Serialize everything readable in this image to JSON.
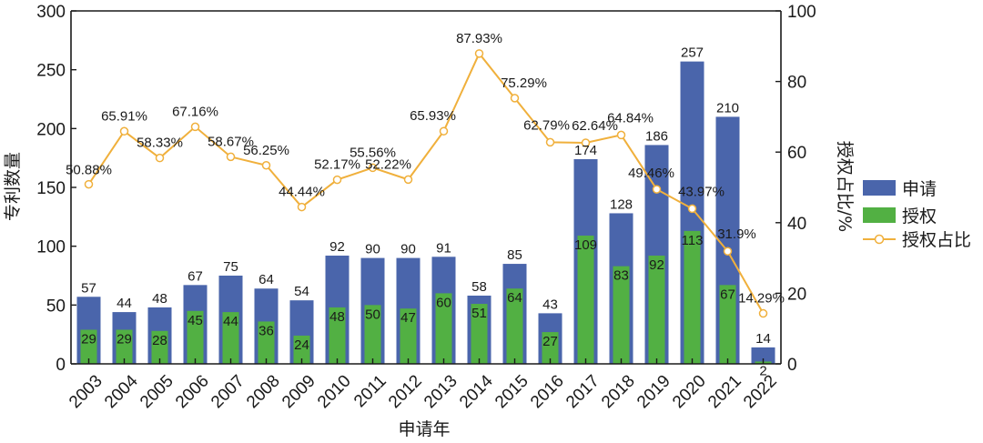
{
  "chart_data": {
    "type": "bar",
    "xlabel": "申请年",
    "ylabel_left": "专利数量",
    "ylabel_right": "授权占比/%",
    "ylim_left": [
      0,
      300
    ],
    "ylim_right": [
      0,
      100
    ],
    "yticks_left": [
      0,
      50,
      100,
      150,
      200,
      250,
      300
    ],
    "yticks_right": [
      0,
      20,
      40,
      60,
      80,
      100
    ],
    "categories": [
      "2003",
      "2004",
      "2005",
      "2006",
      "2007",
      "2008",
      "2009",
      "2010",
      "2011",
      "2012",
      "2013",
      "2014",
      "2015",
      "2016",
      "2017",
      "2018",
      "2019",
      "2020",
      "2021",
      "2022"
    ],
    "series": [
      {
        "name": "申请",
        "type": "bar",
        "axis": "left",
        "color": "#4a65ab",
        "values": [
          57,
          44,
          48,
          67,
          75,
          64,
          54,
          92,
          90,
          90,
          91,
          58,
          85,
          43,
          174,
          128,
          186,
          257,
          210,
          14
        ]
      },
      {
        "name": "授权",
        "type": "bar",
        "axis": "left",
        "color": "#52b043",
        "values": [
          29,
          29,
          28,
          45,
          44,
          36,
          24,
          48,
          50,
          47,
          60,
          51,
          64,
          27,
          109,
          83,
          92,
          113,
          67,
          2
        ]
      },
      {
        "name": "授权占比",
        "type": "line",
        "axis": "right",
        "color": "#f0b03c",
        "values": [
          50.88,
          65.91,
          58.33,
          67.16,
          58.67,
          56.25,
          44.44,
          52.17,
          55.56,
          52.22,
          65.93,
          87.93,
          75.29,
          62.79,
          62.64,
          64.84,
          49.46,
          43.97,
          31.9,
          14.29
        ],
        "labels": [
          "50.88%",
          "65.91%",
          "58.33%",
          "67.16%",
          "58.67%",
          "56.25%",
          "44.44%",
          "52.17%",
          "55.56%",
          "52.22%",
          "65.93%",
          "87.93%",
          "75.29%",
          "62.79%",
          "62.64%",
          "64.84%",
          "49.46%",
          "43.97%",
          "31.9%",
          "14.29%"
        ]
      }
    ],
    "legend": [
      "申请",
      "授权",
      "授权占比"
    ],
    "legend_position": "right"
  }
}
